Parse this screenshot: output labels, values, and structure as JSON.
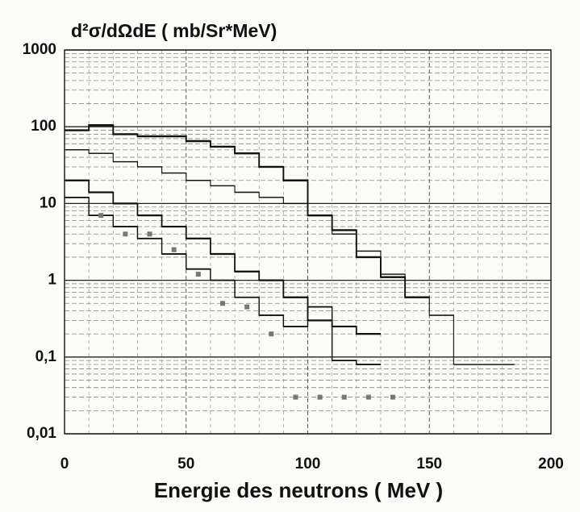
{
  "chart_data": {
    "type": "histogram",
    "title": "d²σ/dΩdE ( mb/Sr*MeV)",
    "x_label": "Energie des neutrons ( MeV )",
    "log_y": true,
    "grid": true,
    "xlim": [
      0,
      200
    ],
    "xticks": [
      0,
      50,
      100,
      150,
      200
    ],
    "ylim": [
      0.01,
      1000
    ],
    "yticks": [
      1000,
      100,
      10,
      1,
      {
        "value": 0.1,
        "label": "0,1"
      },
      {
        "value": 0.01,
        "label": "0,01"
      }
    ],
    "series": [
      {
        "color": "#111111",
        "width": 2.4,
        "bins": [
          0,
          10,
          20,
          30,
          40,
          50,
          60,
          70,
          80,
          90,
          100,
          110,
          120,
          130,
          140,
          150
        ],
        "values": [
          90,
          105,
          80,
          75,
          75,
          65,
          55,
          45,
          30,
          20,
          7,
          4.5,
          2,
          1.1,
          0.6
        ]
      },
      {
        "color": "#111111",
        "width": 1.4,
        "bins": [
          0,
          10,
          20,
          30,
          40,
          50,
          60,
          70,
          80,
          90,
          100,
          110,
          120,
          130,
          140,
          150,
          160,
          185
        ],
        "values": [
          50,
          45,
          35,
          30,
          25,
          20,
          17,
          14,
          12,
          10,
          7,
          4,
          2.4,
          1.2,
          0.6,
          0.35,
          0.08
        ]
      },
      {
        "color": "#111111",
        "width": 2.2,
        "bins": [
          0,
          10,
          20,
          30,
          40,
          50,
          60,
          70,
          80,
          90,
          100,
          110,
          120,
          130
        ],
        "values": [
          20,
          14,
          10,
          7,
          5,
          3.5,
          2.2,
          1.3,
          1,
          0.6,
          0.3,
          0.25,
          0.2
        ]
      },
      {
        "color": "#111111",
        "width": 1.8,
        "bins": [
          0,
          10,
          20,
          30,
          40,
          50,
          60,
          70,
          80,
          90,
          100,
          110,
          120,
          130
        ],
        "values": [
          12,
          7,
          5,
          3.5,
          2.2,
          1.4,
          1,
          0.6,
          0.35,
          0.25,
          0.45,
          0.09,
          0.08
        ]
      }
    ],
    "points": {
      "color": "#777777",
      "x": [
        15,
        25,
        35,
        45,
        55,
        65,
        75,
        85,
        95,
        105,
        115,
        125,
        135
      ],
      "values": [
        7,
        4,
        4,
        2.5,
        1.2,
        0.5,
        0.45,
        0.2,
        0.03,
        0.03,
        0.03,
        0.03,
        0.03
      ]
    }
  }
}
